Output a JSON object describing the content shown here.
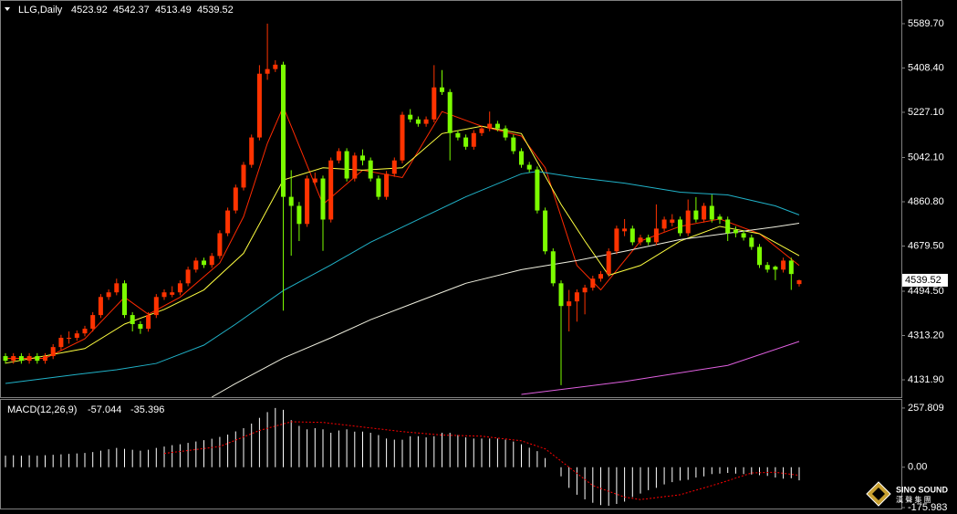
{
  "chart_data": [
    {
      "type": "candlestick",
      "title": "LLG,Daily",
      "up_color": "#ff3300",
      "down_color": "#7cfc00",
      "open": [
        4229,
        4210,
        4229,
        4210,
        4229,
        4210,
        4229,
        4266,
        4300,
        4304,
        4322,
        4341,
        4397,
        4471,
        4490,
        4527,
        4397,
        4360,
        4341,
        4397,
        4471,
        4480,
        4490,
        4527,
        4583,
        4620,
        4602,
        4639,
        4732,
        4825,
        4919,
        5012,
        5124,
        5385,
        5404,
        5422,
        4881,
        4844,
        4770,
        4940,
        4956,
        4788,
        5030,
        5068,
        4956,
        5050,
        5030,
        4956,
        4881,
        4975,
        5030,
        5217,
        5198,
        5180,
        5198,
        5329,
        5310,
        5142,
        5124,
        5086,
        5142,
        5161,
        5180,
        5161,
        5124,
        5068,
        5012,
        4993,
        4825,
        4658,
        4527,
        4434,
        4453,
        4490,
        4509,
        4546,
        4565,
        4658,
        4740,
        4751,
        4695,
        4714,
        4695,
        4751,
        4775,
        4788,
        4732,
        4825,
        4788,
        4844,
        4800,
        4788,
        4745,
        4732,
        4714,
        4676,
        4602,
        4595,
        4583,
        4620,
        4523.92
      ],
      "high": [
        4241,
        4241,
        4241,
        4241,
        4241,
        4241,
        4278,
        4316,
        4330,
        4334,
        4353,
        4409,
        4483,
        4502,
        4546,
        4539,
        4409,
        4372,
        4409,
        4483,
        4502,
        4515,
        4539,
        4595,
        4632,
        4632,
        4651,
        4744,
        4837,
        4931,
        5024,
        5136,
        5420,
        5590,
        5440,
        5434,
        4990,
        4860,
        4968,
        4980,
        4968,
        5042,
        5080,
        5080,
        5062,
        5075,
        5042,
        4968,
        4987,
        5042,
        5229,
        5240,
        5210,
        5210,
        5420,
        5400,
        5322,
        5154,
        5136,
        5154,
        5173,
        5230,
        5192,
        5173,
        5136,
        5080,
        5024,
        5005,
        4837,
        4670,
        4539,
        4500,
        4502,
        4521,
        4558,
        4577,
        4670,
        4763,
        4790,
        4763,
        4726,
        4726,
        4850,
        4800,
        4810,
        4800,
        4870,
        4880,
        4856,
        4890,
        4810,
        4800,
        4760,
        4744,
        4726,
        4688,
        4614,
        4600,
        4632,
        4632,
        4542.37
      ],
      "low": [
        4198,
        4198,
        4198,
        4198,
        4198,
        4198,
        4217,
        4254,
        4280,
        4292,
        4310,
        4329,
        4385,
        4459,
        4478,
        4385,
        4330,
        4320,
        4329,
        4385,
        4459,
        4470,
        4478,
        4515,
        4571,
        4590,
        4590,
        4627,
        4720,
        4813,
        4907,
        5000,
        5112,
        5360,
        5392,
        4415,
        4640,
        4700,
        4758,
        4930,
        4660,
        4776,
        5018,
        4944,
        4944,
        5010,
        4944,
        4869,
        4869,
        4963,
        5018,
        5186,
        5168,
        5168,
        5186,
        5298,
        5030,
        5112,
        5074,
        5074,
        5130,
        5149,
        5149,
        5112,
        5056,
        5000,
        4981,
        4813,
        4646,
        4515,
        4110,
        4330,
        4370,
        4400,
        4497,
        4534,
        4553,
        4646,
        4720,
        4683,
        4683,
        4683,
        4683,
        4739,
        4760,
        4720,
        4720,
        4776,
        4776,
        4776,
        4770,
        4700,
        4715,
        4702,
        4664,
        4590,
        4571,
        4540,
        4571,
        4500,
        4513.49
      ],
      "close": [
        4210,
        4229,
        4210,
        4229,
        4210,
        4229,
        4266,
        4304,
        4304,
        4322,
        4341,
        4397,
        4471,
        4490,
        4527,
        4397,
        4360,
        4341,
        4397,
        4471,
        4490,
        4490,
        4527,
        4583,
        4620,
        4602,
        4639,
        4732,
        4825,
        4919,
        5012,
        5124,
        5385,
        5404,
        5422,
        4881,
        4844,
        4770,
        4956,
        4956,
        4788,
        5030,
        5068,
        4956,
        5050,
        5030,
        4956,
        4881,
        4975,
        5030,
        5217,
        5198,
        5180,
        5198,
        5329,
        5310,
        5142,
        5124,
        5086,
        5142,
        5161,
        5180,
        5161,
        5124,
        5068,
        5012,
        4993,
        4825,
        4658,
        4527,
        4434,
        4453,
        4490,
        4509,
        4546,
        4565,
        4658,
        4751,
        4751,
        4695,
        4714,
        4695,
        4751,
        4788,
        4788,
        4732,
        4825,
        4788,
        4844,
        4788,
        4788,
        4732,
        4732,
        4714,
        4676,
        4602,
        4583,
        4583,
        4620,
        4565,
        4539.52
      ],
      "lines": [
        {
          "color": "#ff2a00",
          "x": [
            0,
            5,
            10,
            15,
            18,
            22,
            27,
            30,
            33,
            35,
            40,
            45,
            50,
            55,
            60,
            65,
            68,
            72,
            75,
            80,
            85,
            90,
            95,
            100
          ],
          "values": [
            4220,
            4220,
            4300,
            4470,
            4400,
            4470,
            4610,
            4800,
            5100,
            5250,
            4850,
            4990,
            4960,
            5230,
            5170,
            5130,
            5000,
            4600,
            4500,
            4700,
            4760,
            4790,
            4730,
            4600
          ]
        },
        {
          "color": "#ffff40",
          "x": [
            0,
            10,
            15,
            20,
            25,
            30,
            35,
            40,
            45,
            50,
            55,
            60,
            65,
            70,
            73,
            76,
            80,
            85,
            90,
            95,
            100
          ],
          "values": [
            4200,
            4260,
            4360,
            4420,
            4500,
            4650,
            4950,
            5000,
            4990,
            5000,
            5140,
            5170,
            5140,
            4850,
            4700,
            4560,
            4600,
            4700,
            4760,
            4730,
            4640
          ]
        },
        {
          "color": "#20b2c8",
          "x": [
            0,
            9,
            14,
            19,
            25,
            29,
            35,
            41,
            46,
            52,
            58,
            65,
            67,
            72,
            78,
            85,
            91,
            97,
            100
          ],
          "values": [
            4117,
            4154,
            4173,
            4199,
            4274,
            4360,
            4497,
            4602,
            4695,
            4788,
            4881,
            4975,
            4985,
            4960,
            4937,
            4900,
            4889,
            4844,
            4807
          ]
        },
        {
          "color": "#f0f0e0",
          "x": [
            26,
            29,
            35,
            41,
            46,
            52,
            58,
            65,
            72,
            78,
            85,
            91,
            97,
            100
          ],
          "values": [
            4061,
            4117,
            4221,
            4304,
            4378,
            4453,
            4527,
            4583,
            4620,
            4658,
            4706,
            4732,
            4758,
            4773
          ]
        },
        {
          "color": "#e060e0",
          "x": [
            65,
            78,
            91,
            100
          ],
          "values": [
            4072,
            4125,
            4191,
            4289
          ]
        }
      ],
      "ylim": [
        4061,
        5683
      ],
      "yticks": [
        {
          "value": 5589.7,
          "label": "5589.70"
        },
        {
          "value": 5408.4,
          "label": "5408.40"
        },
        {
          "value": 5227.1,
          "label": "5227.10"
        },
        {
          "value": 5042.1,
          "label": "5042.10"
        },
        {
          "value": 4860.8,
          "label": "4860.80"
        },
        {
          "value": 4679.5,
          "label": "4679.50"
        },
        {
          "value": 4494.5,
          "label": "4494.50"
        },
        {
          "value": 4313.2,
          "label": "4313.20"
        },
        {
          "value": 4131.9,
          "label": "4131.90"
        }
      ]
    },
    {
      "type": "bar",
      "title": "MACD(12,26,9)",
      "series": [
        {
          "color": "#ffffff",
          "values": [
            50,
            52,
            50,
            52,
            50,
            52,
            54,
            56,
            58,
            60,
            62,
            66,
            72,
            78,
            84,
            80,
            76,
            72,
            76,
            84,
            90,
            96,
            100,
            106,
            112,
            118,
            124,
            132,
            142,
            156,
            170,
            190,
            215,
            240,
            258,
            250,
            205,
            180,
            165,
            170,
            165,
            150,
            160,
            165,
            155,
            155,
            150,
            140,
            125,
            120,
            120,
            135,
            135,
            130,
            135,
            150,
            150,
            140,
            130,
            125,
            125,
            125,
            125,
            120,
            112,
            100,
            85,
            70,
            40,
            0,
            -40,
            -90,
            -120,
            -140,
            -155,
            -165,
            -168,
            -160,
            -150,
            -130,
            -115,
            -100,
            -90,
            -75,
            -65,
            -58,
            -55,
            -45,
            -40,
            -30,
            -28,
            -25,
            -28,
            -30,
            -32,
            -35,
            -38,
            -45,
            -50,
            -48,
            -57.044
          ]
        },
        {
          "color": "#ff0000",
          "dashed": true,
          "x": [
            20,
            27,
            32,
            36,
            40,
            45,
            50,
            55,
            60,
            65,
            68,
            71,
            74,
            78,
            80,
            85,
            90,
            94,
            97,
            100
          ],
          "values": [
            60,
            90,
            160,
            198,
            195,
            175,
            155,
            140,
            135,
            115,
            80,
            0,
            -80,
            -130,
            -141,
            -120,
            -70,
            -25,
            -22,
            -35.396
          ]
        }
      ],
      "ylim": [
        -180,
        293.3
      ],
      "yticks": [
        257.809,
        {
          "value": 0,
          "label": "0.00"
        },
        -175.983
      ]
    }
  ],
  "watermark": {
    "title": "SINO SOUND",
    "subtitle": "漢 聲 集 團"
  }
}
